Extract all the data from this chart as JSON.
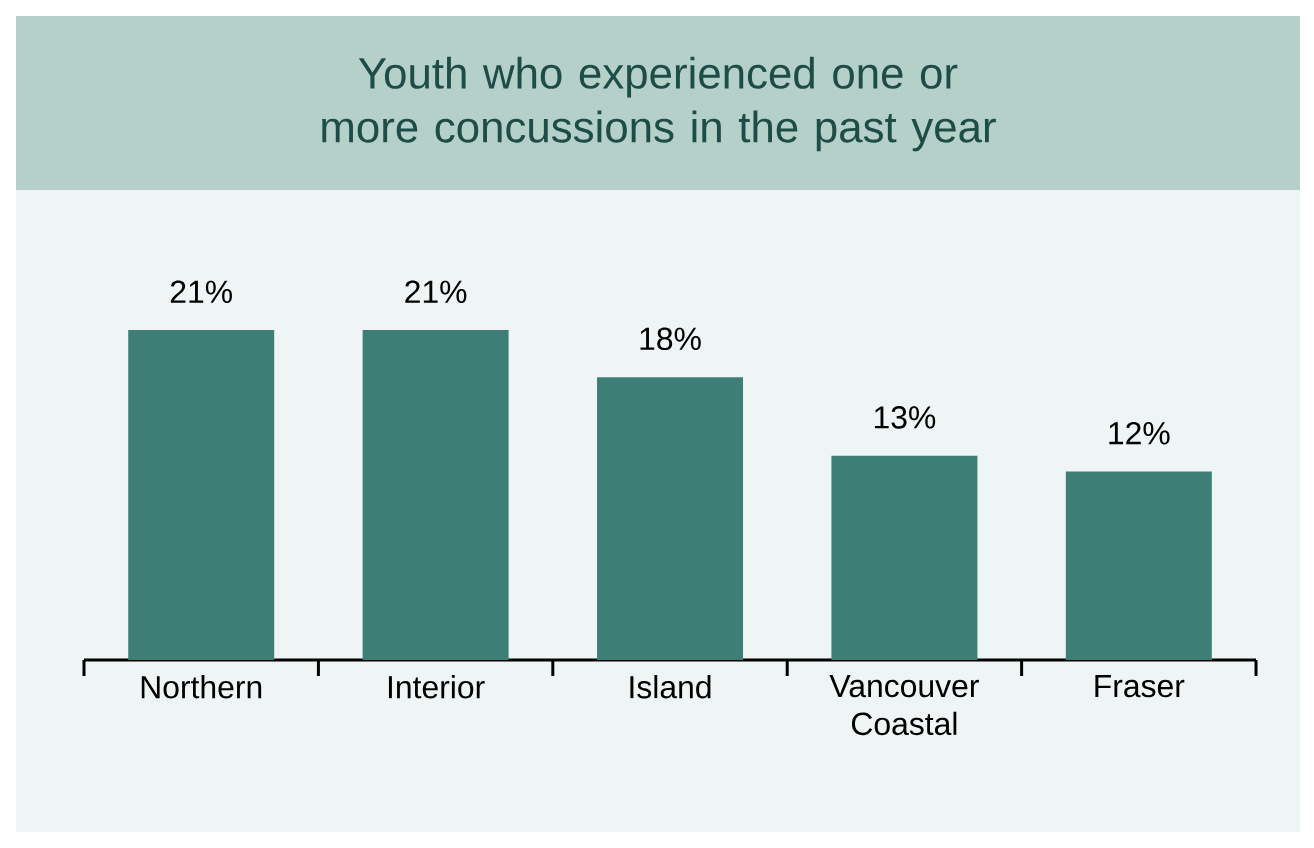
{
  "chart_data": {
    "type": "bar",
    "title": "Youth who experienced one or more concussions in the past year",
    "categories": [
      "Northern",
      "Interior",
      "Island",
      "Vancouver Coastal",
      "Fraser"
    ],
    "values": [
      21,
      21,
      18,
      13,
      12
    ],
    "value_labels": [
      "21%",
      "21%",
      "18%",
      "13%",
      "12%"
    ],
    "color": "#3d7f77"
  }
}
